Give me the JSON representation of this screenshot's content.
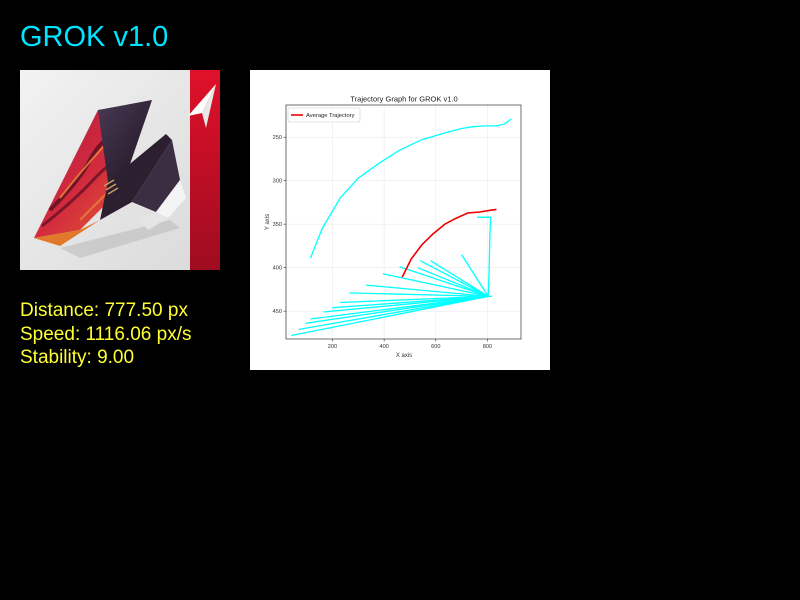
{
  "header": {
    "title": "GROK v1.0",
    "title_color": "#00e5ff"
  },
  "logo": {
    "icon": "paper-airplane-icon",
    "accent_color": "#c8102e"
  },
  "stats": {
    "distance": "Distance: 777.50 px",
    "speed": "Speed: 1116.06 px/s",
    "stability": "Stability: 9.00",
    "text_color": "#ffff33"
  },
  "chart_data": {
    "type": "line",
    "title": "Trajectory Graph for GROK v1.0",
    "xlabel": "X axis",
    "ylabel": "Y axis",
    "xlim": [
      20,
      930
    ],
    "ylim": [
      482,
      213
    ],
    "y_inverted": true,
    "x_ticks": [
      200,
      400,
      600,
      800
    ],
    "y_ticks": [
      250,
      300,
      350,
      400,
      450
    ],
    "grid": true,
    "legend": {
      "position": "top-left",
      "entries": [
        "Average Trajectory"
      ]
    },
    "series": [
      {
        "name": "Average Trajectory",
        "color": "#ee0000",
        "points": [
          [
            470,
            411
          ],
          [
            505,
            390
          ],
          [
            545,
            374
          ],
          [
            590,
            361
          ],
          [
            635,
            350
          ],
          [
            680,
            343
          ],
          [
            725,
            337
          ],
          [
            770,
            336
          ],
          [
            810,
            334
          ],
          [
            835,
            333
          ]
        ]
      }
    ],
    "trajectory_color": "#00ffff",
    "trajectories": [
      [
        [
          115,
          389
        ],
        [
          160,
          355
        ],
        [
          230,
          320
        ],
        [
          300,
          297
        ],
        [
          380,
          280
        ],
        [
          460,
          265
        ],
        [
          545,
          253
        ],
        [
          625,
          246
        ],
        [
          700,
          240
        ],
        [
          745,
          238
        ],
        [
          790,
          237
        ],
        [
          835,
          237
        ],
        [
          865,
          235
        ],
        [
          893,
          229
        ]
      ],
      [
        [
          760,
          342
        ],
        [
          813,
          342
        ],
        [
          810,
          359
        ],
        [
          808,
          383
        ],
        [
          806,
          407
        ],
        [
          803,
          433
        ],
        [
          818,
          433
        ]
      ],
      [
        [
          540,
          392
        ],
        [
          803,
          433
        ]
      ],
      [
        [
          580,
          392
        ],
        [
          803,
          433
        ]
      ],
      [
        [
          700,
          385
        ],
        [
          803,
          433
        ]
      ],
      [
        [
          530,
          400
        ],
        [
          803,
          433
        ]
      ],
      [
        [
          460,
          399
        ],
        [
          803,
          433
        ]
      ],
      [
        [
          395,
          407
        ],
        [
          803,
          433
        ]
      ],
      [
        [
          330,
          420
        ],
        [
          803,
          433
        ]
      ],
      [
        [
          265,
          429
        ],
        [
          803,
          433
        ]
      ],
      [
        [
          230,
          440
        ],
        [
          803,
          433
        ]
      ],
      [
        [
          200,
          446
        ],
        [
          803,
          433
        ]
      ],
      [
        [
          165,
          451
        ],
        [
          803,
          433
        ]
      ],
      [
        [
          115,
          459
        ],
        [
          803,
          433
        ]
      ],
      [
        [
          95,
          464
        ],
        [
          803,
          433
        ]
      ],
      [
        [
          70,
          471
        ],
        [
          803,
          433
        ]
      ],
      [
        [
          40,
          478
        ],
        [
          803,
          433
        ]
      ]
    ]
  }
}
